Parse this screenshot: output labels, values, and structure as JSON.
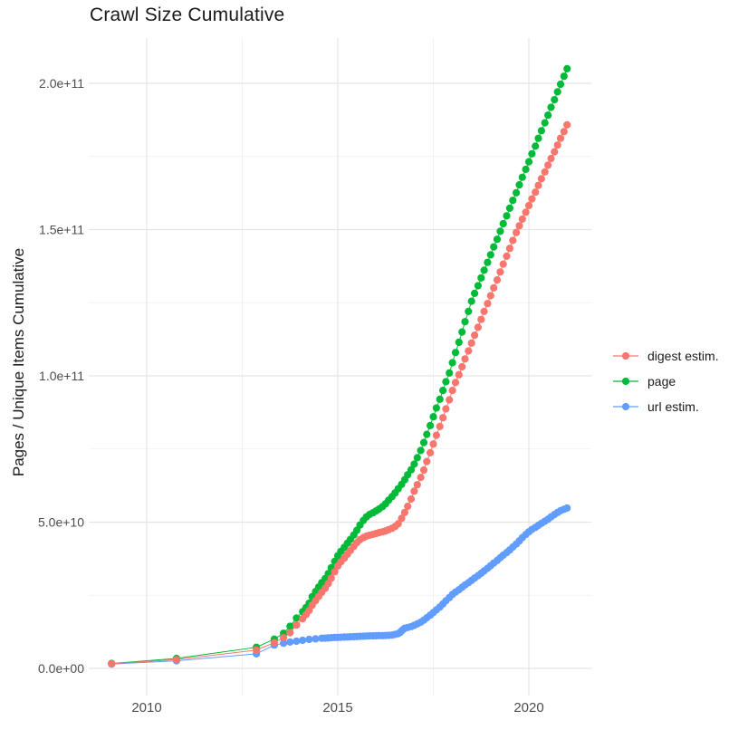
{
  "chart_data": {
    "type": "scatter",
    "title": "Crawl Size Cumulative",
    "xlabel": "",
    "ylabel": "Pages / Unique Items Cumulative",
    "value_unit": "values are cumulative counts in units of 1e9 (billions)",
    "grid": true,
    "x_axis": {
      "ticks": [
        2010,
        2015,
        2020
      ],
      "tick_labels": [
        "2010",
        "2015",
        "2020"
      ],
      "minor_ticks": [
        2012.5,
        2017.5
      ],
      "range": [
        2008.5,
        2021.6
      ]
    },
    "y_axis": {
      "ticks_e9": [
        0,
        50,
        100,
        150,
        200
      ],
      "tick_labels": [
        "0.0e+00",
        "5.0e+10",
        "1.0e+11",
        "1.5e+11",
        "2.0e+11"
      ],
      "minor_ticks_e9": [
        25,
        75,
        125,
        175
      ],
      "range_e9": [
        0,
        215
      ]
    },
    "legend": {
      "position": "right",
      "items": [
        "digest estim.",
        "page",
        "url estim."
      ]
    },
    "series": [
      {
        "name": "digest estim.",
        "color": "#F8766D",
        "points": [
          [
            2009.08,
            1.6
          ],
          [
            2010.78,
            3
          ],
          [
            2012.87,
            6.3
          ],
          [
            2013.34,
            8.8
          ],
          [
            2013.58,
            10.5
          ],
          [
            2013.75,
            12.2
          ],
          [
            2013.92,
            14.8
          ],
          [
            2014.08,
            17
          ],
          [
            2014.17,
            18.4
          ],
          [
            2014.25,
            19.8
          ],
          [
            2014.33,
            21.6
          ],
          [
            2014.42,
            23.2
          ],
          [
            2014.5,
            24.6
          ],
          [
            2014.58,
            26
          ],
          [
            2014.67,
            27.4
          ],
          [
            2014.75,
            29
          ],
          [
            2014.83,
            30.8
          ],
          [
            2014.92,
            33
          ],
          [
            2015,
            35
          ],
          [
            2015.08,
            36.4
          ],
          [
            2015.17,
            37.7
          ],
          [
            2015.25,
            39
          ],
          [
            2015.33,
            40.3
          ],
          [
            2015.42,
            41.7
          ],
          [
            2015.5,
            43
          ],
          [
            2015.58,
            44
          ],
          [
            2015.67,
            44.7
          ],
          [
            2015.75,
            45.2
          ],
          [
            2015.83,
            45.5
          ],
          [
            2015.92,
            45.8
          ],
          [
            2016,
            46.1
          ],
          [
            2016.08,
            46.4
          ],
          [
            2016.17,
            46.7
          ],
          [
            2016.25,
            47
          ],
          [
            2016.33,
            47.4
          ],
          [
            2016.42,
            47.9
          ],
          [
            2016.5,
            48.5
          ],
          [
            2016.58,
            49.4
          ],
          [
            2016.67,
            51.3
          ],
          [
            2016.75,
            53.3
          ],
          [
            2016.83,
            55.4
          ],
          [
            2016.92,
            57.9
          ],
          [
            2017,
            60.6
          ],
          [
            2017.08,
            62.8
          ],
          [
            2017.17,
            65.3
          ],
          [
            2017.25,
            67.8
          ],
          [
            2017.33,
            70.7
          ],
          [
            2017.42,
            73.7
          ],
          [
            2017.5,
            76.7
          ],
          [
            2017.58,
            79.7
          ],
          [
            2017.67,
            82.7
          ],
          [
            2017.75,
            85.7
          ],
          [
            2017.83,
            88.7
          ],
          [
            2017.92,
            91.8
          ],
          [
            2018,
            95
          ],
          [
            2018.08,
            97.7
          ],
          [
            2018.17,
            100.4
          ],
          [
            2018.25,
            103.1
          ],
          [
            2018.33,
            105.8
          ],
          [
            2018.42,
            108.5
          ],
          [
            2018.5,
            111.2
          ],
          [
            2018.58,
            113.9
          ],
          [
            2018.67,
            116.6
          ],
          [
            2018.75,
            119.3
          ],
          [
            2018.83,
            122
          ],
          [
            2018.92,
            124.7
          ],
          [
            2019,
            127.4
          ],
          [
            2019.08,
            130.1
          ],
          [
            2019.17,
            132.8
          ],
          [
            2019.25,
            135.5
          ],
          [
            2019.33,
            138.2
          ],
          [
            2019.42,
            140.9
          ],
          [
            2019.5,
            143.6
          ],
          [
            2019.58,
            146.3
          ],
          [
            2019.67,
            149
          ],
          [
            2019.75,
            151.3
          ],
          [
            2019.83,
            153.6
          ],
          [
            2019.92,
            155.9
          ],
          [
            2020,
            158.2
          ],
          [
            2020.08,
            160.5
          ],
          [
            2020.17,
            162.8
          ],
          [
            2020.25,
            165.1
          ],
          [
            2020.33,
            167.4
          ],
          [
            2020.42,
            169.7
          ],
          [
            2020.5,
            172
          ],
          [
            2020.58,
            174.3
          ],
          [
            2020.67,
            176.6
          ],
          [
            2020.75,
            178.9
          ],
          [
            2020.83,
            181.2
          ],
          [
            2020.92,
            183.5
          ],
          [
            2021,
            185.8
          ]
        ]
      },
      {
        "name": "page",
        "color": "#00BA38",
        "points": [
          [
            2009.08,
            1.7
          ],
          [
            2010.78,
            3.4
          ],
          [
            2012.87,
            7.2
          ],
          [
            2013.34,
            10
          ],
          [
            2013.58,
            12
          ],
          [
            2013.75,
            14.4
          ],
          [
            2013.92,
            17.2
          ],
          [
            2014.08,
            19.4
          ],
          [
            2014.17,
            20.8
          ],
          [
            2014.25,
            22.3
          ],
          [
            2014.33,
            24.5
          ],
          [
            2014.42,
            26.3
          ],
          [
            2014.5,
            27.8
          ],
          [
            2014.58,
            29.3
          ],
          [
            2014.67,
            30.7
          ],
          [
            2014.75,
            32.4
          ],
          [
            2014.83,
            34.4
          ],
          [
            2014.92,
            36.6
          ],
          [
            2015,
            38.5
          ],
          [
            2015.08,
            40
          ],
          [
            2015.17,
            41.4
          ],
          [
            2015.25,
            42.8
          ],
          [
            2015.33,
            44.1
          ],
          [
            2015.42,
            45.6
          ],
          [
            2015.5,
            47.2
          ],
          [
            2015.58,
            49
          ],
          [
            2015.67,
            50.6
          ],
          [
            2015.75,
            51.8
          ],
          [
            2015.83,
            52.6
          ],
          [
            2015.92,
            53.2
          ],
          [
            2016,
            53.8
          ],
          [
            2016.08,
            54.5
          ],
          [
            2016.17,
            55.3
          ],
          [
            2016.25,
            56.3
          ],
          [
            2016.33,
            57.5
          ],
          [
            2016.42,
            58.7
          ],
          [
            2016.5,
            60
          ],
          [
            2016.58,
            61.4
          ],
          [
            2016.67,
            62.9
          ],
          [
            2016.75,
            64.5
          ],
          [
            2016.83,
            66.2
          ],
          [
            2016.92,
            67.9
          ],
          [
            2017,
            69.8
          ],
          [
            2017.08,
            72
          ],
          [
            2017.17,
            74.5
          ],
          [
            2017.25,
            77.2
          ],
          [
            2017.33,
            80
          ],
          [
            2017.42,
            83
          ],
          [
            2017.5,
            86
          ],
          [
            2017.58,
            89
          ],
          [
            2017.67,
            92
          ],
          [
            2017.75,
            95
          ],
          [
            2017.83,
            98
          ],
          [
            2017.92,
            101
          ],
          [
            2018,
            104.5
          ],
          [
            2018.08,
            108
          ],
          [
            2018.17,
            111.5
          ],
          [
            2018.25,
            115
          ],
          [
            2018.33,
            118.5
          ],
          [
            2018.42,
            122
          ],
          [
            2018.5,
            125.5
          ],
          [
            2018.58,
            128.2
          ],
          [
            2018.67,
            130.8
          ],
          [
            2018.75,
            133.5
          ],
          [
            2018.83,
            136.1
          ],
          [
            2018.92,
            138.8
          ],
          [
            2019,
            141.4
          ],
          [
            2019.08,
            144.1
          ],
          [
            2019.17,
            146.7
          ],
          [
            2019.25,
            149.4
          ],
          [
            2019.33,
            152
          ],
          [
            2019.42,
            154.7
          ],
          [
            2019.5,
            157.3
          ],
          [
            2019.58,
            160
          ],
          [
            2019.67,
            162.6
          ],
          [
            2019.75,
            165.3
          ],
          [
            2019.83,
            167.9
          ],
          [
            2019.92,
            170.6
          ],
          [
            2020,
            173.2
          ],
          [
            2020.08,
            175.9
          ],
          [
            2020.17,
            178.5
          ],
          [
            2020.25,
            181.2
          ],
          [
            2020.33,
            183.8
          ],
          [
            2020.42,
            186.5
          ],
          [
            2020.5,
            189.1
          ],
          [
            2020.58,
            191.8
          ],
          [
            2020.67,
            194.4
          ],
          [
            2020.75,
            197.1
          ],
          [
            2020.83,
            199.7
          ],
          [
            2020.92,
            202.4
          ],
          [
            2021,
            205
          ]
        ]
      },
      {
        "name": "url estim.",
        "color": "#619CFF",
        "points": [
          [
            2009.08,
            1.5
          ],
          [
            2010.78,
            2.6
          ],
          [
            2012.87,
            5
          ],
          [
            2013.34,
            8
          ],
          [
            2013.58,
            8.6
          ],
          [
            2013.75,
            9
          ],
          [
            2013.92,
            9.3
          ],
          [
            2014.08,
            9.6
          ],
          [
            2014.25,
            9.9
          ],
          [
            2014.42,
            10.1
          ],
          [
            2014.58,
            10.3
          ],
          [
            2014.67,
            10.35
          ],
          [
            2014.75,
            10.4
          ],
          [
            2014.83,
            10.5
          ],
          [
            2014.92,
            10.55
          ],
          [
            2015,
            10.6
          ],
          [
            2015.08,
            10.65
          ],
          [
            2015.17,
            10.7
          ],
          [
            2015.25,
            10.75
          ],
          [
            2015.33,
            10.8
          ],
          [
            2015.42,
            10.85
          ],
          [
            2015.5,
            10.9
          ],
          [
            2015.58,
            10.95
          ],
          [
            2015.67,
            11
          ],
          [
            2015.75,
            11.05
          ],
          [
            2015.83,
            11.1
          ],
          [
            2015.92,
            11.1
          ],
          [
            2016,
            11.15
          ],
          [
            2016.08,
            11.2
          ],
          [
            2016.17,
            11.2
          ],
          [
            2016.25,
            11.25
          ],
          [
            2016.33,
            11.3
          ],
          [
            2016.42,
            11.4
          ],
          [
            2016.5,
            11.6
          ],
          [
            2016.58,
            11.9
          ],
          [
            2016.63,
            12.3
          ],
          [
            2016.67,
            12.8
          ],
          [
            2016.71,
            13.3
          ],
          [
            2016.75,
            13.7
          ],
          [
            2016.83,
            14
          ],
          [
            2016.92,
            14.3
          ],
          [
            2017,
            14.7
          ],
          [
            2017.08,
            15.2
          ],
          [
            2017.17,
            15.8
          ],
          [
            2017.25,
            16.5
          ],
          [
            2017.33,
            17.3
          ],
          [
            2017.42,
            18.2
          ],
          [
            2017.5,
            19.1
          ],
          [
            2017.58,
            20
          ],
          [
            2017.67,
            21
          ],
          [
            2017.75,
            22
          ],
          [
            2017.83,
            23.1
          ],
          [
            2017.92,
            24.2
          ],
          [
            2018,
            25.3
          ],
          [
            2018.08,
            26.1
          ],
          [
            2018.17,
            26.9
          ],
          [
            2018.25,
            27.7
          ],
          [
            2018.33,
            28.5
          ],
          [
            2018.42,
            29.3
          ],
          [
            2018.5,
            30.1
          ],
          [
            2018.58,
            30.9
          ],
          [
            2018.67,
            31.7
          ],
          [
            2018.75,
            32.5
          ],
          [
            2018.83,
            33.3
          ],
          [
            2018.92,
            34.2
          ],
          [
            2019,
            35.1
          ],
          [
            2019.08,
            36
          ],
          [
            2019.17,
            36.9
          ],
          [
            2019.25,
            37.8
          ],
          [
            2019.33,
            38.7
          ],
          [
            2019.42,
            39.6
          ],
          [
            2019.5,
            40.5
          ],
          [
            2019.58,
            41.5
          ],
          [
            2019.67,
            42.5
          ],
          [
            2019.75,
            43.6
          ],
          [
            2019.83,
            44.7
          ],
          [
            2019.92,
            45.8
          ],
          [
            2020,
            46.7
          ],
          [
            2020.08,
            47.5
          ],
          [
            2020.17,
            48.2
          ],
          [
            2020.25,
            48.9
          ],
          [
            2020.33,
            49.6
          ],
          [
            2020.42,
            50.3
          ],
          [
            2020.5,
            51
          ],
          [
            2020.58,
            51.8
          ],
          [
            2020.67,
            52.6
          ],
          [
            2020.75,
            53.3
          ],
          [
            2020.83,
            53.9
          ],
          [
            2020.92,
            54.4
          ],
          [
            2021,
            54.8
          ]
        ]
      }
    ],
    "draw_order": [
      "page",
      "url estim.",
      "digest estim."
    ]
  },
  "colors": {
    "background": "#ffffff",
    "grid_major": "#e4e4e4",
    "grid_minor": "#efefef",
    "tick_text": "#4d4d4d",
    "title_text": "#1a1a1a"
  }
}
